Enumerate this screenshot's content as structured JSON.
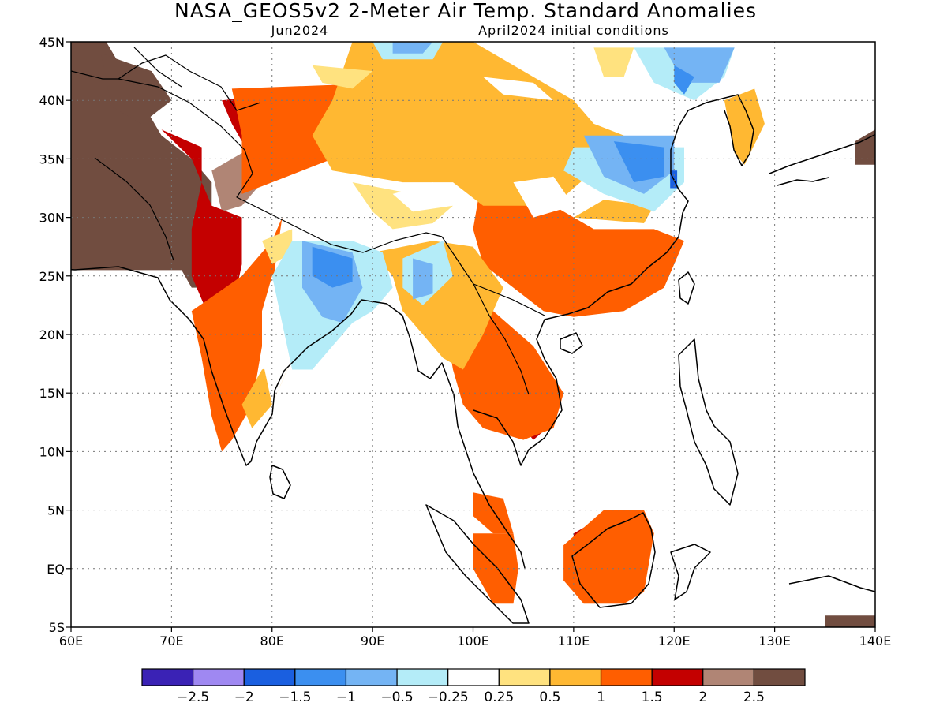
{
  "title": "NASA_GEOS5v2 2-Meter Air Temp. Standard Anomalies",
  "subtitle_left": "Jun2024",
  "subtitle_right": "April2024 initial conditions",
  "map_extent": {
    "lon_min": 60,
    "lon_max": 140,
    "lat_min": -5,
    "lat_max": 45
  },
  "grid": "dotted",
  "y_ticks": [
    {
      "lat": 45,
      "label": "45N"
    },
    {
      "lat": 40,
      "label": "40N"
    },
    {
      "lat": 35,
      "label": "35N"
    },
    {
      "lat": 30,
      "label": "30N"
    },
    {
      "lat": 25,
      "label": "25N"
    },
    {
      "lat": 20,
      "label": "20N"
    },
    {
      "lat": 15,
      "label": "15N"
    },
    {
      "lat": 10,
      "label": "10N"
    },
    {
      "lat": 5,
      "label": "5N"
    },
    {
      "lat": 0,
      "label": "EQ"
    },
    {
      "lat": -5,
      "label": "5S"
    }
  ],
  "x_ticks": [
    {
      "lon": 60,
      "label": "60E"
    },
    {
      "lon": 70,
      "label": "70E"
    },
    {
      "lon": 80,
      "label": "80E"
    },
    {
      "lon": 90,
      "label": "90E"
    },
    {
      "lon": 100,
      "label": "100E"
    },
    {
      "lon": 110,
      "label": "110E"
    },
    {
      "lon": 120,
      "label": "120E"
    },
    {
      "lon": 130,
      "label": "130E"
    },
    {
      "lon": 140,
      "label": "140E"
    }
  ],
  "colorbar": {
    "colors": [
      "#3a22b5",
      "#9f88f2",
      "#1a5fe0",
      "#3b8ff0",
      "#74b4f4",
      "#b4ecf8",
      "#ffffff",
      "#ffe27f",
      "#ffb832",
      "#ff5e00",
      "#c40000",
      "#b08575",
      "#714d40"
    ],
    "labels": [
      "-2.5",
      "-2",
      "-1.5",
      "-1",
      "-0.5",
      "-0.25",
      "0.25",
      "0.5",
      "1",
      "1.5",
      "2",
      "2.5"
    ]
  },
  "anomaly_regions": [
    {
      "category": 12,
      "pts": [
        [
          60,
          45
        ],
        [
          63.5,
          45
        ],
        [
          69,
          37
        ],
        [
          72,
          35
        ],
        [
          74,
          33
        ],
        [
          74,
          28
        ],
        [
          74,
          24
        ],
        [
          72,
          24
        ],
        [
          71,
          25.5
        ],
        [
          66,
          25.5
        ],
        [
          60,
          25.5
        ]
      ]
    },
    {
      "category": 12,
      "pts": [
        [
          63,
          44
        ],
        [
          68,
          42.5
        ],
        [
          70,
          40
        ],
        [
          67,
          38
        ],
        [
          64,
          39.5
        ]
      ]
    },
    {
      "category": 12,
      "pts": [
        [
          138,
          34.5
        ],
        [
          140,
          34.5
        ],
        [
          140,
          37.5
        ],
        [
          138,
          36.5
        ]
      ]
    },
    {
      "category": 12,
      "pts": [
        [
          135,
          -4
        ],
        [
          140,
          -4
        ],
        [
          140,
          -5
        ],
        [
          135,
          -5
        ]
      ]
    },
    {
      "category": 11,
      "pts": [
        [
          74,
          34
        ],
        [
          78,
          36
        ],
        [
          80,
          34
        ],
        [
          77,
          31
        ],
        [
          75,
          30.5
        ]
      ]
    },
    {
      "category": 11,
      "pts": [
        [
          111,
          1.5
        ],
        [
          116,
          5
        ],
        [
          117,
          4
        ],
        [
          116,
          1
        ],
        [
          114,
          -2
        ],
        [
          112,
          -2
        ]
      ]
    },
    {
      "category": 10,
      "pts": [
        [
          69,
          37.5
        ],
        [
          73,
          36
        ],
        [
          73,
          33
        ],
        [
          72,
          29
        ],
        [
          72,
          25
        ],
        [
          73,
          23
        ],
        [
          74,
          21
        ],
        [
          76,
          22
        ],
        [
          77,
          26
        ],
        [
          77,
          30
        ],
        [
          74,
          31
        ],
        [
          72,
          35
        ]
      ]
    },
    {
      "category": 10,
      "pts": [
        [
          75,
          40
        ],
        [
          85,
          41
        ],
        [
          90,
          39
        ],
        [
          90,
          36
        ],
        [
          84,
          35
        ],
        [
          80,
          33.5
        ],
        [
          78,
          35
        ],
        [
          76,
          38
        ]
      ]
    },
    {
      "category": 10,
      "pts": [
        [
          104,
          17
        ],
        [
          108,
          15
        ],
        [
          108,
          12.5
        ],
        [
          106,
          11
        ],
        [
          104,
          13
        ],
        [
          103,
          14.5
        ]
      ]
    },
    {
      "category": 10,
      "pts": [
        [
          113,
          24.5
        ],
        [
          116,
          24
        ],
        [
          117,
          23
        ],
        [
          114,
          22
        ],
        [
          112,
          22.5
        ]
      ]
    },
    {
      "category": 10,
      "pts": [
        [
          110,
          3
        ],
        [
          114,
          5
        ],
        [
          117,
          4
        ],
        [
          116,
          0
        ],
        [
          114,
          -2
        ],
        [
          112,
          -2
        ],
        [
          110,
          0
        ]
      ]
    },
    {
      "category": 10,
      "pts": [
        [
          102,
          6
        ],
        [
          103.5,
          4
        ],
        [
          103,
          3
        ],
        [
          101.5,
          4.5
        ]
      ]
    },
    {
      "category": 9,
      "pts": [
        [
          76,
          41
        ],
        [
          92,
          41.5
        ],
        [
          100,
          38
        ],
        [
          104,
          36
        ],
        [
          103,
          34
        ],
        [
          101,
          33
        ],
        [
          95,
          35
        ],
        [
          86,
          35
        ],
        [
          80,
          33
        ],
        [
          77,
          32
        ],
        [
          77,
          37
        ]
      ]
    },
    {
      "category": 9,
      "pts": [
        [
          72,
          22
        ],
        [
          77,
          25
        ],
        [
          80,
          28
        ],
        [
          81,
          30
        ],
        [
          80,
          24
        ],
        [
          79,
          19
        ],
        [
          78,
          14
        ],
        [
          76,
          11
        ],
        [
          75,
          10
        ],
        [
          74,
          13
        ],
        [
          73,
          18
        ]
      ]
    },
    {
      "category": 9,
      "pts": [
        [
          101,
          34
        ],
        [
          103,
          36
        ],
        [
          106,
          34
        ],
        [
          108,
          31
        ],
        [
          112,
          29
        ],
        [
          118,
          29
        ],
        [
          121,
          28
        ],
        [
          119,
          24
        ],
        [
          115,
          22
        ],
        [
          110,
          21.5
        ],
        [
          107,
          22
        ],
        [
          104,
          24
        ],
        [
          101,
          26
        ],
        [
          100,
          29
        ]
      ]
    },
    {
      "category": 9,
      "pts": [
        [
          97,
          22
        ],
        [
          102,
          22
        ],
        [
          106,
          19
        ],
        [
          109,
          15
        ],
        [
          108,
          12
        ],
        [
          105,
          11
        ],
        [
          101,
          12
        ],
        [
          99,
          14
        ],
        [
          98,
          17
        ]
      ]
    },
    {
      "category": 9,
      "pts": [
        [
          109,
          2
        ],
        [
          113,
          5
        ],
        [
          117,
          5
        ],
        [
          118,
          3
        ],
        [
          117,
          -2
        ],
        [
          115,
          -3
        ],
        [
          111,
          -3
        ],
        [
          109,
          -1
        ]
      ]
    },
    {
      "category": 9,
      "pts": [
        [
          100,
          3
        ],
        [
          104,
          3
        ],
        [
          104.5,
          0
        ],
        [
          104,
          -3
        ],
        [
          102,
          -3
        ],
        [
          100,
          0
        ]
      ]
    },
    {
      "category": 9,
      "pts": [
        [
          100,
          6.5
        ],
        [
          103,
          6
        ],
        [
          104,
          3
        ],
        [
          102,
          3
        ],
        [
          100,
          4.5
        ]
      ]
    },
    {
      "category": 8,
      "pts": [
        [
          88,
          45
        ],
        [
          100,
          45
        ],
        [
          104,
          43
        ],
        [
          108,
          41
        ],
        [
          110,
          40
        ],
        [
          112,
          38
        ],
        [
          115,
          37
        ],
        [
          112,
          34
        ],
        [
          108,
          31
        ],
        [
          101,
          31
        ],
        [
          98,
          33
        ],
        [
          93,
          33
        ],
        [
          86,
          34
        ],
        [
          84,
          37
        ],
        [
          86,
          40
        ]
      ]
    },
    {
      "category": 8,
      "pts": [
        [
          90,
          27
        ],
        [
          96,
          28
        ],
        [
          100,
          27.5
        ],
        [
          103,
          24
        ],
        [
          101,
          20
        ],
        [
          99,
          17
        ],
        [
          97,
          18
        ],
        [
          95,
          20
        ],
        [
          93,
          22
        ],
        [
          92,
          25
        ]
      ]
    },
    {
      "category": 8,
      "pts": [
        [
          110,
          30
        ],
        [
          117,
          29.5
        ],
        [
          118,
          31
        ],
        [
          113,
          31.5
        ]
      ]
    },
    {
      "category": 8,
      "pts": [
        [
          125,
          40
        ],
        [
          128,
          41
        ],
        [
          129,
          38
        ],
        [
          127,
          34.5
        ],
        [
          126,
          35.5
        ]
      ]
    },
    {
      "category": 8,
      "pts": [
        [
          79,
          17
        ],
        [
          82,
          18
        ],
        [
          80,
          14
        ],
        [
          78,
          12
        ],
        [
          77,
          14
        ]
      ]
    },
    {
      "category": 7,
      "pts": [
        [
          88,
          33
        ],
        [
          94,
          32
        ],
        [
          98,
          31
        ],
        [
          96,
          29.5
        ],
        [
          92,
          29
        ],
        [
          90,
          30.5
        ]
      ]
    },
    {
      "category": 7,
      "pts": [
        [
          84,
          43
        ],
        [
          90,
          42.5
        ],
        [
          88,
          41
        ],
        [
          85,
          41.5
        ]
      ]
    },
    {
      "category": 7,
      "pts": [
        [
          112,
          44.5
        ],
        [
          116,
          44.5
        ],
        [
          115,
          42
        ],
        [
          113,
          42
        ]
      ]
    },
    {
      "category": 7,
      "pts": [
        [
          79,
          28
        ],
        [
          82,
          29
        ],
        [
          82,
          27
        ],
        [
          80,
          26
        ]
      ]
    },
    {
      "category": 6,
      "pts": [
        [
          80,
          14
        ],
        [
          82,
          18
        ],
        [
          81,
          22
        ],
        [
          80,
          25
        ],
        [
          79,
          22
        ],
        [
          79,
          18
        ]
      ]
    },
    {
      "category": 6,
      "pts": [
        [
          92,
          32
        ],
        [
          96,
          33
        ],
        [
          98,
          31
        ],
        [
          94,
          30.5
        ]
      ]
    },
    {
      "category": 6,
      "pts": [
        [
          104,
          33
        ],
        [
          108,
          33.5
        ],
        [
          110,
          31
        ],
        [
          106,
          30
        ]
      ]
    },
    {
      "category": 6,
      "pts": [
        [
          101,
          42
        ],
        [
          106,
          41.5
        ],
        [
          108,
          40
        ],
        [
          103,
          40.5
        ]
      ]
    },
    {
      "category": 5,
      "pts": [
        [
          82,
          28
        ],
        [
          88,
          28
        ],
        [
          91,
          27
        ],
        [
          92,
          24
        ],
        [
          90,
          22
        ],
        [
          88,
          21
        ],
        [
          86,
          19
        ],
        [
          84,
          17
        ],
        [
          82,
          17
        ],
        [
          81,
          21
        ],
        [
          80,
          25
        ]
      ]
    },
    {
      "category": 5,
      "pts": [
        [
          93,
          26.5
        ],
        [
          97,
          28
        ],
        [
          98,
          25
        ],
        [
          95,
          22.5
        ],
        [
          93,
          24
        ]
      ]
    },
    {
      "category": 5,
      "pts": [
        [
          90,
          45
        ],
        [
          97,
          45
        ],
        [
          96,
          43.5
        ],
        [
          91,
          43.5
        ]
      ]
    },
    {
      "category": 5,
      "pts": [
        [
          110,
          36
        ],
        [
          121,
          36
        ],
        [
          121,
          33
        ],
        [
          118,
          30.5
        ],
        [
          113,
          32
        ],
        [
          109,
          34
        ]
      ]
    },
    {
      "category": 5,
      "pts": [
        [
          116,
          44.5
        ],
        [
          126,
          44.5
        ],
        [
          125,
          42
        ],
        [
          122,
          40
        ],
        [
          118,
          41.5
        ]
      ]
    },
    {
      "category": 4,
      "pts": [
        [
          83,
          28
        ],
        [
          88,
          27
        ],
        [
          89,
          24
        ],
        [
          87,
          21
        ],
        [
          85,
          21.5
        ],
        [
          83,
          24
        ]
      ]
    },
    {
      "category": 4,
      "pts": [
        [
          94,
          26.5
        ],
        [
          96,
          26
        ],
        [
          96,
          23.5
        ],
        [
          94,
          23
        ]
      ]
    },
    {
      "category": 4,
      "pts": [
        [
          92,
          45
        ],
        [
          96,
          45
        ],
        [
          95,
          44
        ],
        [
          92,
          44
        ]
      ]
    },
    {
      "category": 4,
      "pts": [
        [
          111,
          37
        ],
        [
          120,
          37
        ],
        [
          120,
          34
        ],
        [
          117,
          32
        ],
        [
          113,
          33.5
        ]
      ]
    },
    {
      "category": 4,
      "pts": [
        [
          119,
          44.5
        ],
        [
          126,
          44.5
        ],
        [
          124.5,
          41.5
        ],
        [
          121,
          41.5
        ]
      ]
    },
    {
      "category": 3,
      "pts": [
        [
          84,
          27.5
        ],
        [
          88,
          26.5
        ],
        [
          88,
          24.5
        ],
        [
          86,
          24
        ],
        [
          84,
          25
        ]
      ]
    },
    {
      "category": 3,
      "pts": [
        [
          114,
          36.5
        ],
        [
          119,
          36
        ],
        [
          119,
          33.5
        ],
        [
          116,
          33
        ]
      ]
    },
    {
      "category": 3,
      "pts": [
        [
          120,
          43
        ],
        [
          122,
          42
        ],
        [
          121,
          40.5
        ],
        [
          120,
          41.5
        ]
      ]
    },
    {
      "category": 2,
      "pts": [
        [
          119.6,
          34
        ],
        [
          120.3,
          34
        ],
        [
          120.3,
          32.5
        ],
        [
          119.6,
          32.5
        ]
      ]
    }
  ]
}
